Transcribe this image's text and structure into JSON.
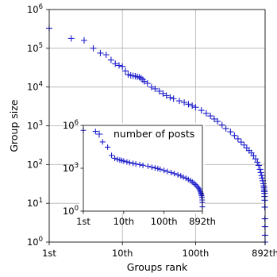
{
  "colors": {
    "series": "#1f1fcc",
    "grid": "#b0b0b0",
    "axes": "#000000",
    "background": "#ffffff"
  },
  "chart_data": [
    {
      "type": "scatter",
      "role": "main",
      "xlabel": "Groups rank",
      "ylabel": "Group size",
      "x_scale": "log",
      "y_scale": "log",
      "xlim": [
        1,
        892
      ],
      "ylim": [
        1,
        1000000
      ],
      "grid": true,
      "x_ticks": [
        {
          "value": 1,
          "label": "1st"
        },
        {
          "value": 10,
          "label": "10th"
        },
        {
          "value": 100,
          "label": "100th"
        },
        {
          "value": 892,
          "label": "892th"
        }
      ],
      "y_ticks": [
        {
          "value": 1,
          "base": "10",
          "exp": "0"
        },
        {
          "value": 10,
          "base": "10",
          "exp": "1"
        },
        {
          "value": 100,
          "base": "10",
          "exp": "2"
        },
        {
          "value": 1000,
          "base": "10",
          "exp": "3"
        },
        {
          "value": 10000,
          "base": "10",
          "exp": "4"
        },
        {
          "value": 100000,
          "base": "10",
          "exp": "5"
        },
        {
          "value": 1000000,
          "base": "10",
          "exp": "6"
        }
      ],
      "marker": "+",
      "points": [
        [
          1,
          330000
        ],
        [
          2,
          180000
        ],
        [
          3,
          160000
        ],
        [
          4,
          100000
        ],
        [
          5,
          75000
        ],
        [
          6,
          68000
        ],
        [
          7,
          50000
        ],
        [
          8,
          40000
        ],
        [
          9,
          36000
        ],
        [
          10,
          34000
        ],
        [
          11,
          26000
        ],
        [
          12,
          21000
        ],
        [
          13,
          20000
        ],
        [
          14,
          19500
        ],
        [
          15,
          19000
        ],
        [
          16,
          18500
        ],
        [
          17,
          18000
        ],
        [
          18,
          17000
        ],
        [
          19,
          15500
        ],
        [
          20,
          14000
        ],
        [
          22,
          12500
        ],
        [
          25,
          10000
        ],
        [
          28,
          9000
        ],
        [
          32,
          7800
        ],
        [
          36,
          6800
        ],
        [
          40,
          6000
        ],
        [
          45,
          5400
        ],
        [
          50,
          5000
        ],
        [
          60,
          4400
        ],
        [
          70,
          4000
        ],
        [
          80,
          3600
        ],
        [
          90,
          3300
        ],
        [
          100,
          3000
        ],
        [
          120,
          2500
        ],
        [
          140,
          2100
        ],
        [
          160,
          1800
        ],
        [
          180,
          1500
        ],
        [
          200,
          1300
        ],
        [
          230,
          1050
        ],
        [
          260,
          850
        ],
        [
          300,
          700
        ],
        [
          340,
          560
        ],
        [
          380,
          460
        ],
        [
          420,
          380
        ],
        [
          460,
          320
        ],
        [
          500,
          270
        ],
        [
          540,
          230
        ],
        [
          580,
          200
        ],
        [
          620,
          170
        ],
        [
          660,
          140
        ],
        [
          700,
          115
        ],
        [
          730,
          95
        ],
        [
          760,
          75
        ],
        [
          780,
          62
        ],
        [
          800,
          52
        ],
        [
          815,
          45
        ],
        [
          830,
          38
        ],
        [
          845,
          32
        ],
        [
          855,
          28
        ],
        [
          862,
          25
        ],
        [
          868,
          22
        ],
        [
          872,
          20
        ],
        [
          875,
          18
        ],
        [
          878,
          15
        ],
        [
          880,
          12
        ],
        [
          883,
          8
        ],
        [
          886,
          4
        ],
        [
          888,
          2.5
        ],
        [
          890,
          1.5
        ],
        [
          892,
          1
        ]
      ]
    },
    {
      "type": "scatter",
      "role": "inset",
      "legend": "number of posts",
      "legend_position": "top-right",
      "x_scale": "log",
      "y_scale": "log",
      "xlim": [
        1,
        892
      ],
      "ylim": [
        1,
        1000000
      ],
      "grid": false,
      "x_ticks": [
        {
          "value": 1,
          "label": "1st"
        },
        {
          "value": 10,
          "label": "10th"
        },
        {
          "value": 100,
          "label": "100th"
        },
        {
          "value": 892,
          "label": "892th"
        }
      ],
      "y_ticks": [
        {
          "value": 1,
          "base": "10",
          "exp": "0"
        },
        {
          "value": 1000,
          "base": "10",
          "exp": "3"
        },
        {
          "value": 1000000,
          "base": "10",
          "exp": "6"
        }
      ],
      "marker": "+",
      "points": [
        [
          1,
          450000
        ],
        [
          2,
          380000
        ],
        [
          3,
          70000
        ],
        [
          4,
          30000
        ],
        [
          5,
          8000
        ],
        [
          6,
          5000
        ],
        [
          7,
          4200
        ],
        [
          8,
          3800
        ],
        [
          9,
          3500
        ],
        [
          10,
          3200
        ],
        [
          12,
          2800
        ],
        [
          14,
          2500
        ],
        [
          17,
          2200
        ],
        [
          20,
          2000
        ],
        [
          25,
          1800
        ],
        [
          30,
          1600
        ],
        [
          40,
          1400
        ],
        [
          50,
          1200
        ],
        [
          60,
          1050
        ],
        [
          70,
          950
        ],
        [
          80,
          850
        ],
        [
          100,
          700
        ],
        [
          120,
          600
        ],
        [
          150,
          500
        ],
        [
          180,
          420
        ],
        [
          220,
          350
        ],
        [
          260,
          290
        ],
        [
          300,
          240
        ],
        [
          350,
          200
        ],
        [
          400,
          165
        ],
        [
          450,
          135
        ],
        [
          500,
          110
        ],
        [
          550,
          90
        ],
        [
          600,
          72
        ],
        [
          650,
          57
        ],
        [
          700,
          45
        ],
        [
          740,
          36
        ],
        [
          770,
          28
        ],
        [
          800,
          22
        ],
        [
          820,
          18
        ],
        [
          840,
          15
        ],
        [
          855,
          12
        ],
        [
          868,
          9
        ],
        [
          878,
          6
        ],
        [
          885,
          4
        ],
        [
          892,
          2
        ]
      ]
    }
  ]
}
